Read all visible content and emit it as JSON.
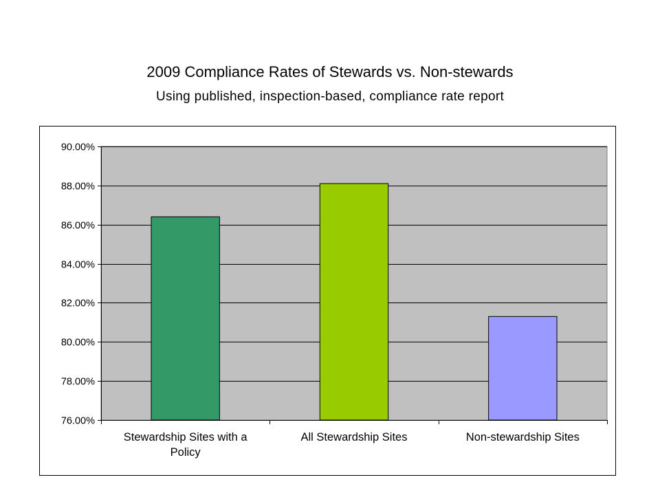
{
  "chart_data": {
    "type": "bar",
    "title": "2009 Compliance Rates of Stewards vs. Non-stewards",
    "subtitle": "Using published, inspection-based, compliance rate report",
    "xlabel": "",
    "ylabel": "",
    "categories": [
      [
        "Stewardship Sites with a",
        "Policy"
      ],
      [
        "All Stewardship Sites"
      ],
      [
        "Non-stewardship Sites"
      ]
    ],
    "values": [
      86.4,
      88.1,
      81.3
    ],
    "bar_colors": [
      "#339966",
      "#99cc00",
      "#9999ff"
    ],
    "plot_background": "#c0c0c0",
    "ylim": [
      76,
      90
    ],
    "yticks": [
      76,
      78,
      80,
      82,
      84,
      86,
      88,
      90
    ],
    "ytick_labels": [
      "76.00%",
      "78.00%",
      "80.00%",
      "82.00%",
      "84.00%",
      "86.00%",
      "88.00%",
      "90.00%"
    ],
    "grid": true,
    "legend": "none"
  }
}
